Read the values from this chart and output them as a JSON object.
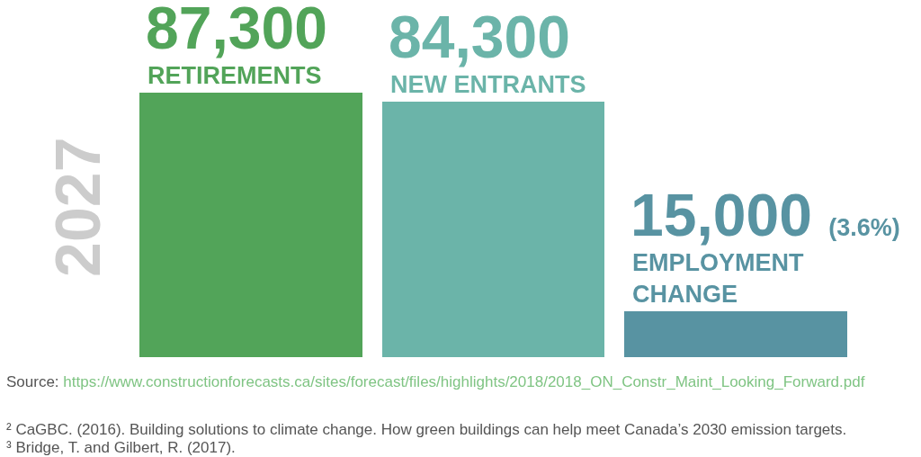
{
  "chart_data": {
    "type": "bar",
    "title": "2027",
    "categories": [
      "RETIREMENTS",
      "NEW ENTRANTS",
      "EMPLOYMENT CHANGE"
    ],
    "values": [
      87300,
      84300,
      15000
    ],
    "colors": [
      "#52a459",
      "#6bb4a9",
      "#5893a2"
    ],
    "value_labels": [
      "87,300",
      "84,300",
      "15,000 (3.6%)"
    ],
    "tick_labels": false,
    "annotations": [
      "Source: https://www.constructionforecasts.ca/sites/forecast/files/highlights/2018/2018_ON_Constr_Maint_Looking_Forward.pdf",
      "² CaGBC. (2016). Building solutions to climate change. How green buildings can help meet Canada’s 2030 emission targets.",
      "³ Bridge, T. and Gilbert, R. (2017)."
    ]
  }
}
